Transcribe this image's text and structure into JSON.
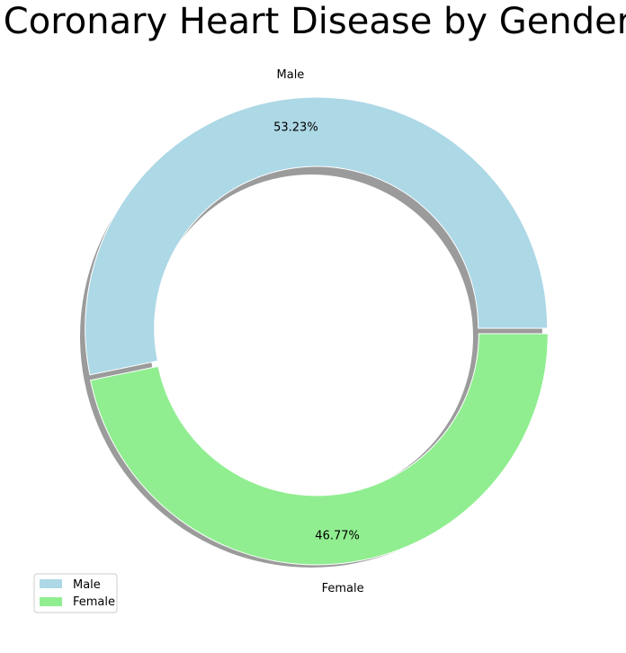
{
  "chart_data": {
    "type": "pie",
    "variant": "donut",
    "title": "Coronary Heart Disease by Gender",
    "categories": [
      "Male",
      "Female"
    ],
    "values": [
      53.23,
      46.77
    ],
    "value_labels": [
      "53.23%",
      "46.77%"
    ],
    "colors": [
      "#add8e6",
      "#90ee90"
    ],
    "shadow": true,
    "legend": {
      "position": "bottom-left",
      "entries": [
        "Male",
        "Female"
      ]
    }
  }
}
